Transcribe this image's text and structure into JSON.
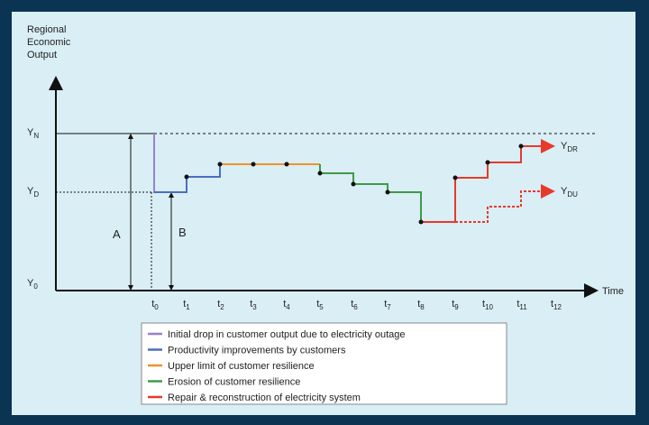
{
  "y_axis_label": [
    "Regional",
    "Economic",
    "Output"
  ],
  "x_axis_label": "Time",
  "y_labels": [
    {
      "base": "Y",
      "sub": "N"
    },
    {
      "base": "Y",
      "sub": "D"
    },
    {
      "base": "Y",
      "sub": "0"
    }
  ],
  "x_labels": [
    {
      "base": "t",
      "sub": "0"
    },
    {
      "base": "t",
      "sub": "1"
    },
    {
      "base": "t",
      "sub": "2"
    },
    {
      "base": "t",
      "sub": "3"
    },
    {
      "base": "t",
      "sub": "4"
    },
    {
      "base": "t",
      "sub": "5"
    },
    {
      "base": "t",
      "sub": "6"
    },
    {
      "base": "t",
      "sub": "7"
    },
    {
      "base": "t",
      "sub": "8"
    },
    {
      "base": "t",
      "sub": "9"
    },
    {
      "base": "t",
      "sub": "10"
    },
    {
      "base": "t",
      "sub": "11"
    },
    {
      "base": "t",
      "sub": "12"
    }
  ],
  "annotations": [
    "A",
    "B"
  ],
  "end_labels": [
    {
      "base": "Y",
      "sub": "DR"
    },
    {
      "base": "Y",
      "sub": "DU"
    }
  ],
  "legend": [
    {
      "label": "Initial drop in customer output due to electricity outage",
      "color": "#9a7fd0"
    },
    {
      "label": "Productivity improvements by customers",
      "color": "#4a6fc0"
    },
    {
      "label": "Upper limit of customer resilience",
      "color": "#f0922a"
    },
    {
      "label": "Erosion of customer resilience",
      "color": "#3f9a45"
    },
    {
      "label": "Repair & reconstruction of electricity system",
      "color": "#e8392a"
    }
  ]
}
